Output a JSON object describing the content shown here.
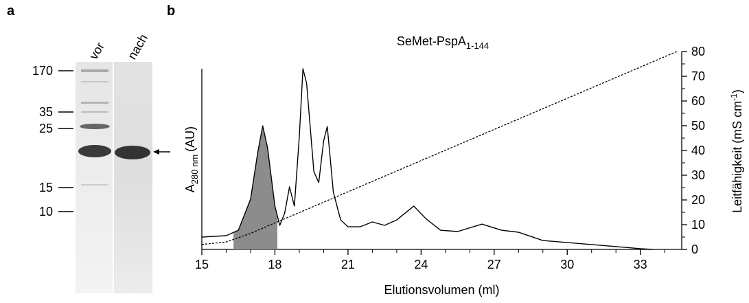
{
  "panels": {
    "a": {
      "label": "a",
      "lanes": [
        "vor",
        "nach"
      ],
      "markers": [
        170,
        35,
        25,
        15,
        10
      ]
    },
    "b": {
      "label": "b"
    }
  },
  "chart_data": {
    "type": "line",
    "title": "SeMet-PspA",
    "title_subscript": "1-144",
    "ylabel": [
      "A",
      "280 nm",
      "(AU)"
    ],
    "y2label": [
      "Leitfähigkeit (mS cm",
      "-1",
      ")"
    ],
    "xlabel": "Elutionsvolumen (ml)",
    "xlim": [
      15,
      34.7
    ],
    "xticks": [
      15,
      18,
      21,
      24,
      27,
      30,
      33
    ],
    "xminorticks": [
      16,
      17,
      19,
      20,
      22,
      23,
      25,
      26,
      28,
      29,
      31,
      32,
      34
    ],
    "ylim": [
      0,
      100
    ],
    "y2lim": [
      0,
      80
    ],
    "y2ticks": [
      0,
      10,
      20,
      30,
      40,
      50,
      60,
      70,
      80
    ],
    "y2minorticks": [
      5,
      15,
      25,
      35,
      45,
      55,
      65,
      75
    ],
    "shade": [
      16.3,
      18.1
    ],
    "shade_color": "#8c8c8c",
    "series": [
      {
        "color": "#000000",
        "x": [
          15,
          16,
          16.5,
          17,
          17.3,
          17.5,
          17.7,
          18,
          18.2,
          18.4,
          18.6,
          18.8,
          19,
          19.15,
          19.3,
          19.6,
          19.8,
          20,
          20.15,
          20.4,
          20.7,
          21,
          21.5,
          22,
          22.5,
          23,
          23.7,
          24.2,
          24.8,
          25.5,
          26.5,
          27.3,
          28,
          29,
          31,
          33,
          33.5
        ],
        "values": [
          6.8,
          7.6,
          10.6,
          27.8,
          54,
          68.4,
          56,
          24,
          13.3,
          20,
          34.6,
          24,
          62,
          100,
          92,
          43,
          37,
          60,
          68,
          31.6,
          16.3,
          12.5,
          12.5,
          15.2,
          13.3,
          16.3,
          24,
          17,
          10.6,
          9.9,
          14,
          10.6,
          9.5,
          4.9,
          2.7,
          0.4,
          0
        ]
      },
      {
        "color": "#000000",
        "axis": "y2",
        "dashed": true,
        "x": [
          15,
          16,
          17,
          34.5
        ],
        "values": [
          2,
          3,
          6.5,
          80
        ]
      }
    ]
  }
}
